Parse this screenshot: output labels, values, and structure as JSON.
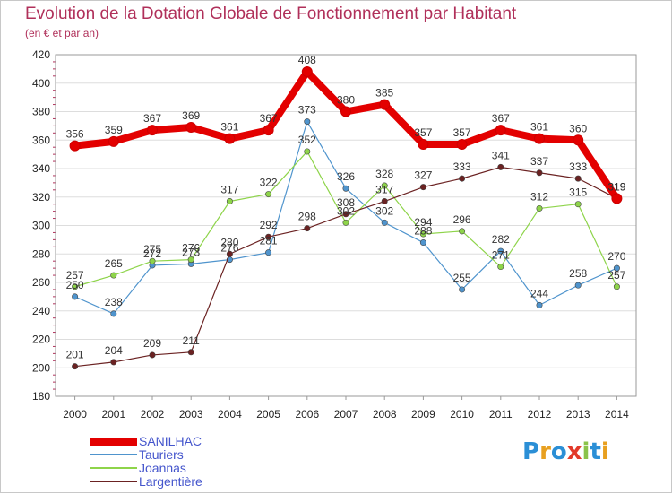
{
  "title": "Evolution de la Dotation Globale de Fonctionnement par Habitant",
  "subtitle": "(en € et par an)",
  "logo_text": "Proxiti",
  "logo_colors": [
    "#2b8fd6",
    "#e8a020",
    "#2b8fd6",
    "#e23a2a",
    "#8bc34a",
    "#2b8fd6",
    "#e8a020"
  ],
  "colors": {
    "title": "#b0305a",
    "grid": "#dddddd",
    "axis_text": "#222222",
    "legend_text": "#4455cc"
  },
  "chart_data": {
    "type": "line",
    "title": "Evolution de la Dotation Globale de Fonctionnement par Habitant",
    "subtitle": "(en € et par an)",
    "x": [
      "2000",
      "2001",
      "2002",
      "2003",
      "2004",
      "2005",
      "2006",
      "2007",
      "2008",
      "2009",
      "2010",
      "2011",
      "2012",
      "2013",
      "2014"
    ],
    "ylim": [
      180,
      420
    ],
    "yticks": [
      180,
      200,
      220,
      240,
      260,
      280,
      300,
      320,
      340,
      360,
      380,
      400,
      420
    ],
    "grid": "horizontal",
    "legend_position": "bottom-left",
    "series": [
      {
        "name": "SANILHAC",
        "color": "#e30000",
        "values": [
          356,
          359,
          367,
          369,
          361,
          367,
          408,
          380,
          385,
          357,
          357,
          367,
          361,
          360,
          319
        ],
        "labels": [
          "356",
          "359",
          "367",
          "369",
          "361",
          "367",
          "408",
          "380",
          "385",
          "357",
          "357",
          "367",
          "361",
          "360",
          "319"
        ]
      },
      {
        "name": "Tauriers",
        "color": "#4f94cd",
        "values": [
          250,
          238,
          272,
          273,
          276,
          281,
          373,
          326,
          302,
          288,
          255,
          282,
          244,
          258,
          270
        ],
        "labels": [
          "250",
          "238",
          "272",
          "273",
          "276",
          "281",
          "373",
          "326",
          "302",
          "288",
          "255",
          "282",
          "244",
          "258",
          "270"
        ]
      },
      {
        "name": "Joannas",
        "color": "#8ed44a",
        "values": [
          257,
          265,
          275,
          276,
          317,
          322,
          352,
          302,
          328,
          294,
          296,
          271,
          312,
          315,
          257
        ],
        "labels": [
          "257",
          "265",
          "275",
          "276",
          "317",
          "322",
          "352",
          "302",
          "328",
          "294",
          "296",
          "271",
          "312",
          "315",
          "257"
        ]
      },
      {
        "name": "Largentière",
        "color": "#6b2222",
        "values": [
          201,
          204,
          209,
          211,
          280,
          292,
          298,
          308,
          317,
          327,
          333,
          341,
          337,
          333,
          319
        ],
        "labels": [
          "201",
          "204",
          "209",
          "211",
          "280",
          "292",
          "298",
          "308",
          "317",
          "327",
          "333",
          "341",
          "337",
          "333",
          "319"
        ]
      }
    ]
  }
}
